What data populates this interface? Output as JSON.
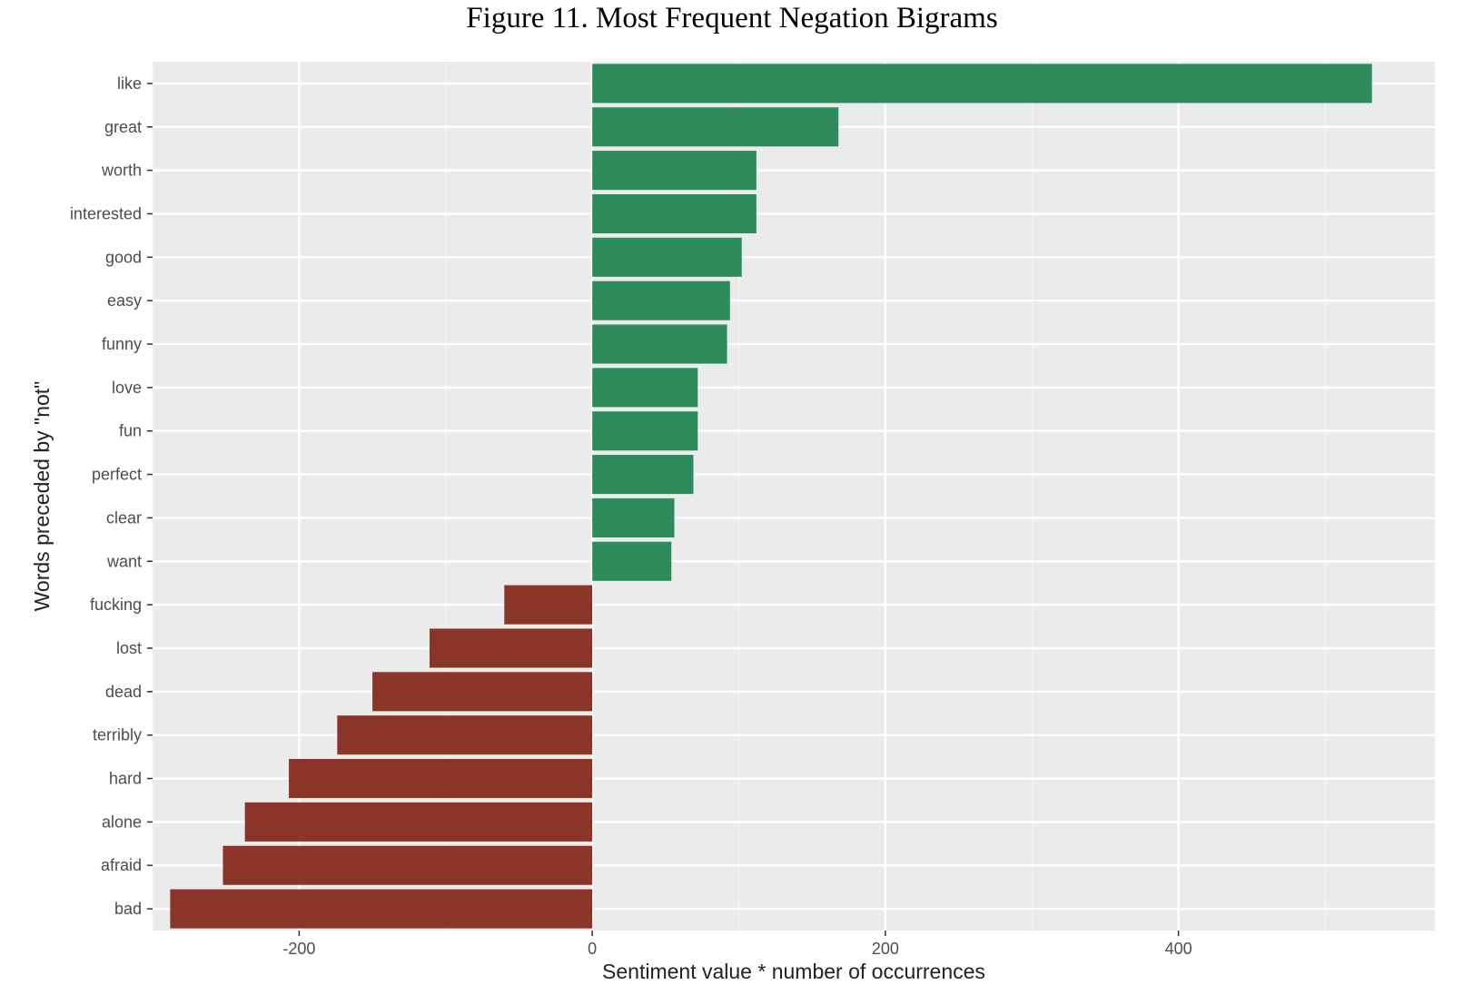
{
  "figure": {
    "title": "Figure 11. Most Frequent Negation Bigrams"
  },
  "colors": {
    "panel_background": "#ebebeb",
    "grid_major": "#ffffff",
    "grid_minor": "#f5f5f5",
    "positive": "#2e8b5e",
    "negative": "#8b3528",
    "tick_mark": "#333333"
  },
  "chart_data": {
    "type": "bar",
    "orientation": "horizontal",
    "title": "",
    "xlabel": "Sentiment value * number of occurrences",
    "ylabel": "Words preceded by \"not\"",
    "xlim": [
      -300,
      575
    ],
    "x_ticks": [
      -200,
      0,
      200,
      400
    ],
    "x_tick_labels": [
      "-200",
      "0",
      "200",
      "400"
    ],
    "grid": true,
    "legend": "none",
    "categories": [
      "like",
      "great",
      "worth",
      "interested",
      "good",
      "easy",
      "funny",
      "love",
      "fun",
      "perfect",
      "clear",
      "want",
      "fucking",
      "lost",
      "dead",
      "terribly",
      "hard",
      "alone",
      "afraid",
      "bad"
    ],
    "values": [
      532,
      168,
      112,
      112,
      102,
      94,
      92,
      72,
      72,
      69,
      56,
      54,
      -60,
      -111,
      -150,
      -174,
      -207,
      -237,
      -252,
      -288
    ]
  }
}
